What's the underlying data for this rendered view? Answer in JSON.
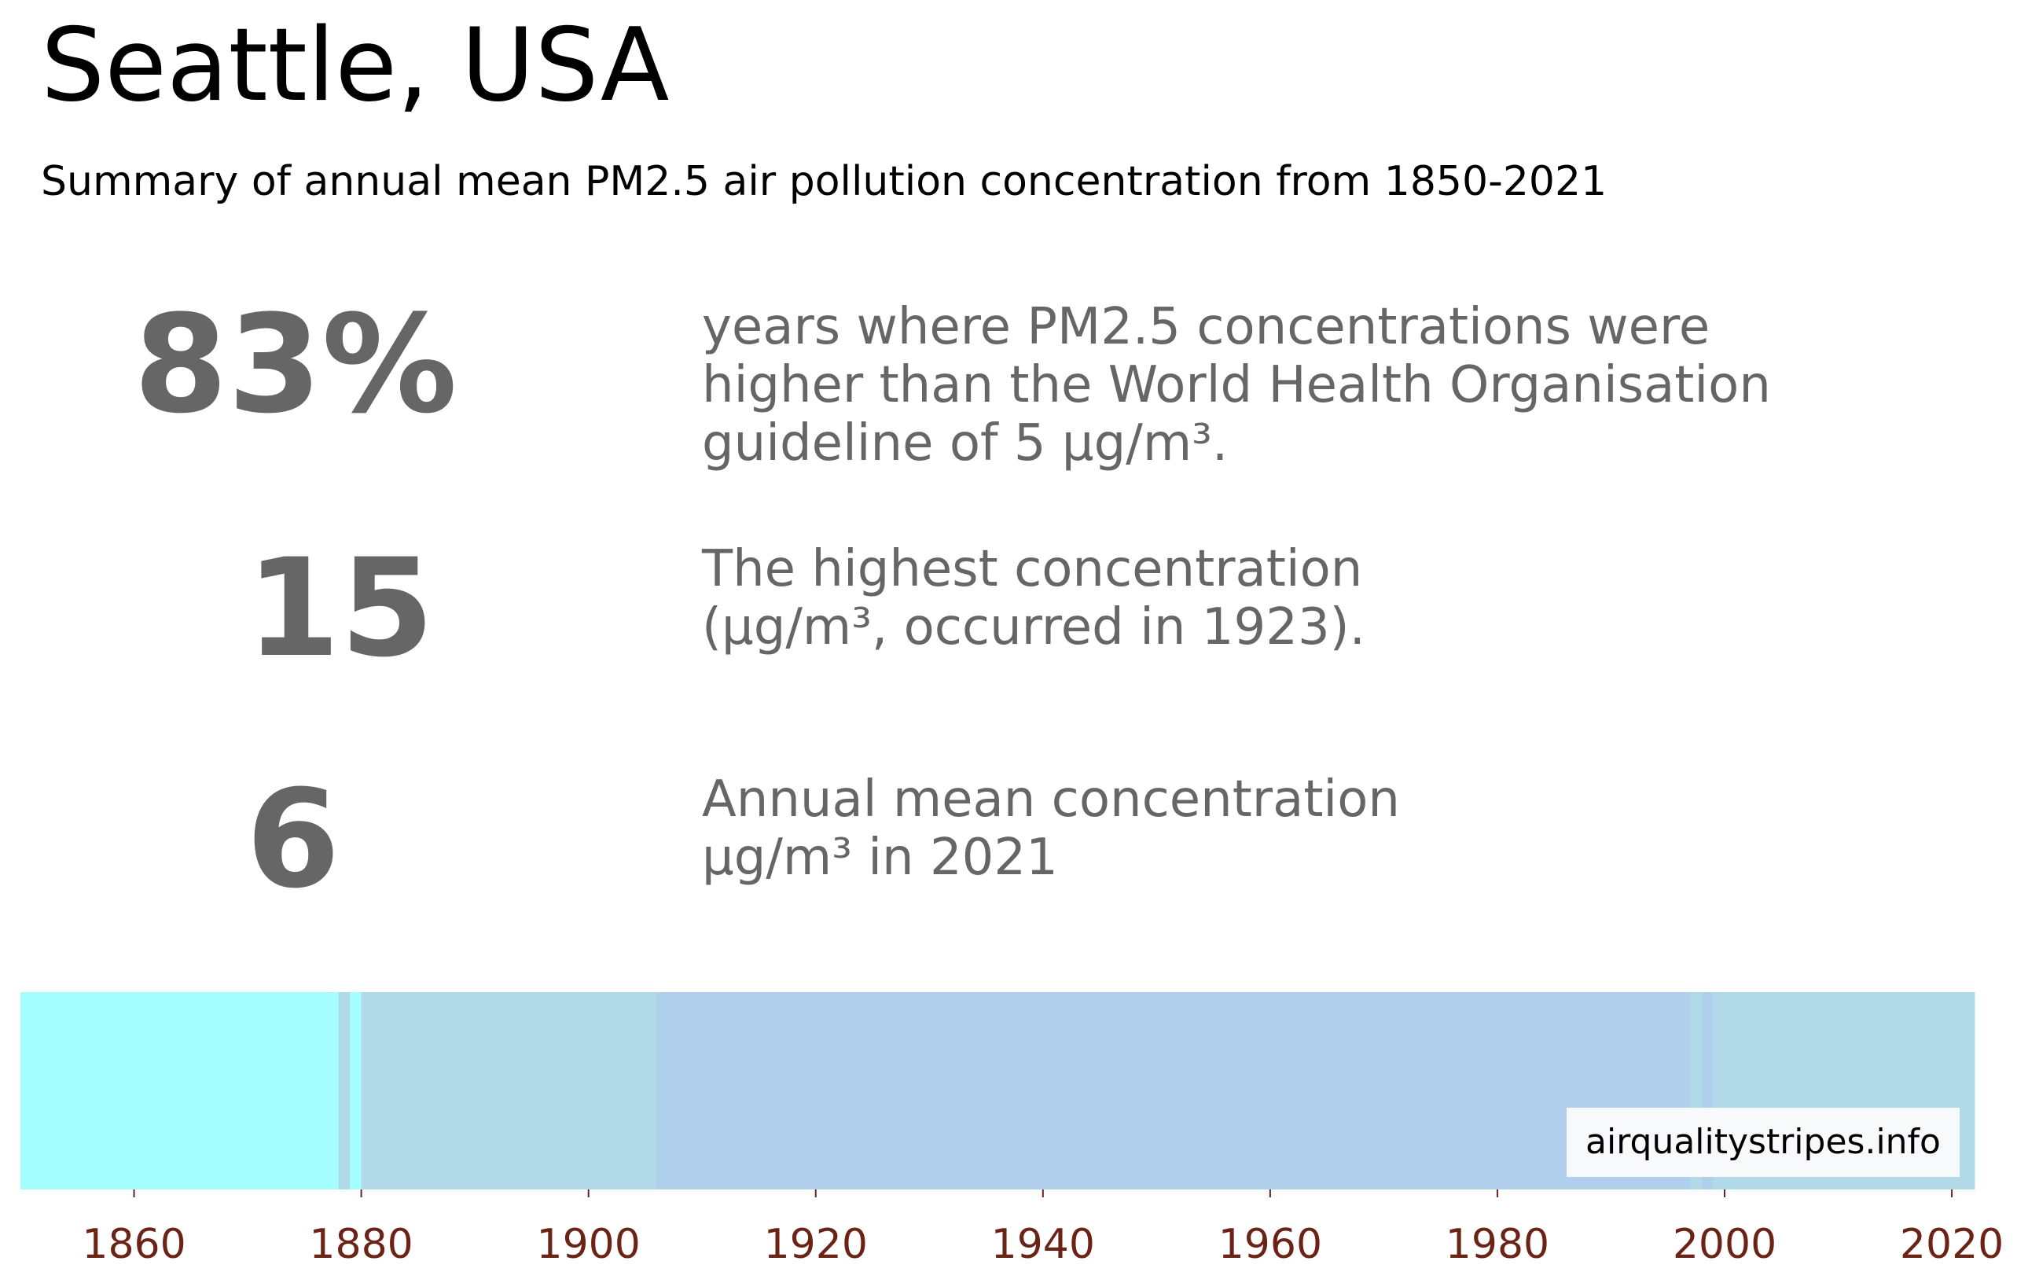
{
  "header": {
    "title": "Seattle, USA",
    "subtitle": "Summary of annual mean PM2.5 air pollution concentration from 1850-2021"
  },
  "stats": [
    {
      "value": "83%",
      "description": "years where PM2.5 concentrations were\nhigher than the World Health Organisation\nguideline of 5 µg/m³."
    },
    {
      "value": "15",
      "description": "The highest concentration\n(µg/m³, occurred in 1923)."
    },
    {
      "value": "6",
      "description": "Annual mean concentration\nµg/m³ in 2021"
    }
  ],
  "credit": "airqualitystripes.info",
  "colors": {
    "stat_text": "#666666",
    "tick_text": "#6b2316"
  },
  "chart_data": {
    "type": "heatmap",
    "x_range": [
      1850,
      2021
    ],
    "x_ticks": [
      1860,
      1880,
      1900,
      1920,
      1940,
      1960,
      1980,
      2000,
      2020
    ],
    "segments": [
      {
        "start": 1850,
        "end": 1878,
        "color": "#a6ffff"
      },
      {
        "start": 1878,
        "end": 1879,
        "color": "#b0dae8"
      },
      {
        "start": 1879,
        "end": 1880,
        "color": "#a6ffff"
      },
      {
        "start": 1880,
        "end": 1906,
        "color": "#b0dae8"
      },
      {
        "start": 1906,
        "end": 1997,
        "color": "#b0cfed"
      },
      {
        "start": 1997,
        "end": 1998,
        "color": "#b0dae8"
      },
      {
        "start": 1998,
        "end": 1999,
        "color": "#b0cfed"
      },
      {
        "start": 1999,
        "end": 2022,
        "color": "#b0dae8"
      }
    ]
  }
}
